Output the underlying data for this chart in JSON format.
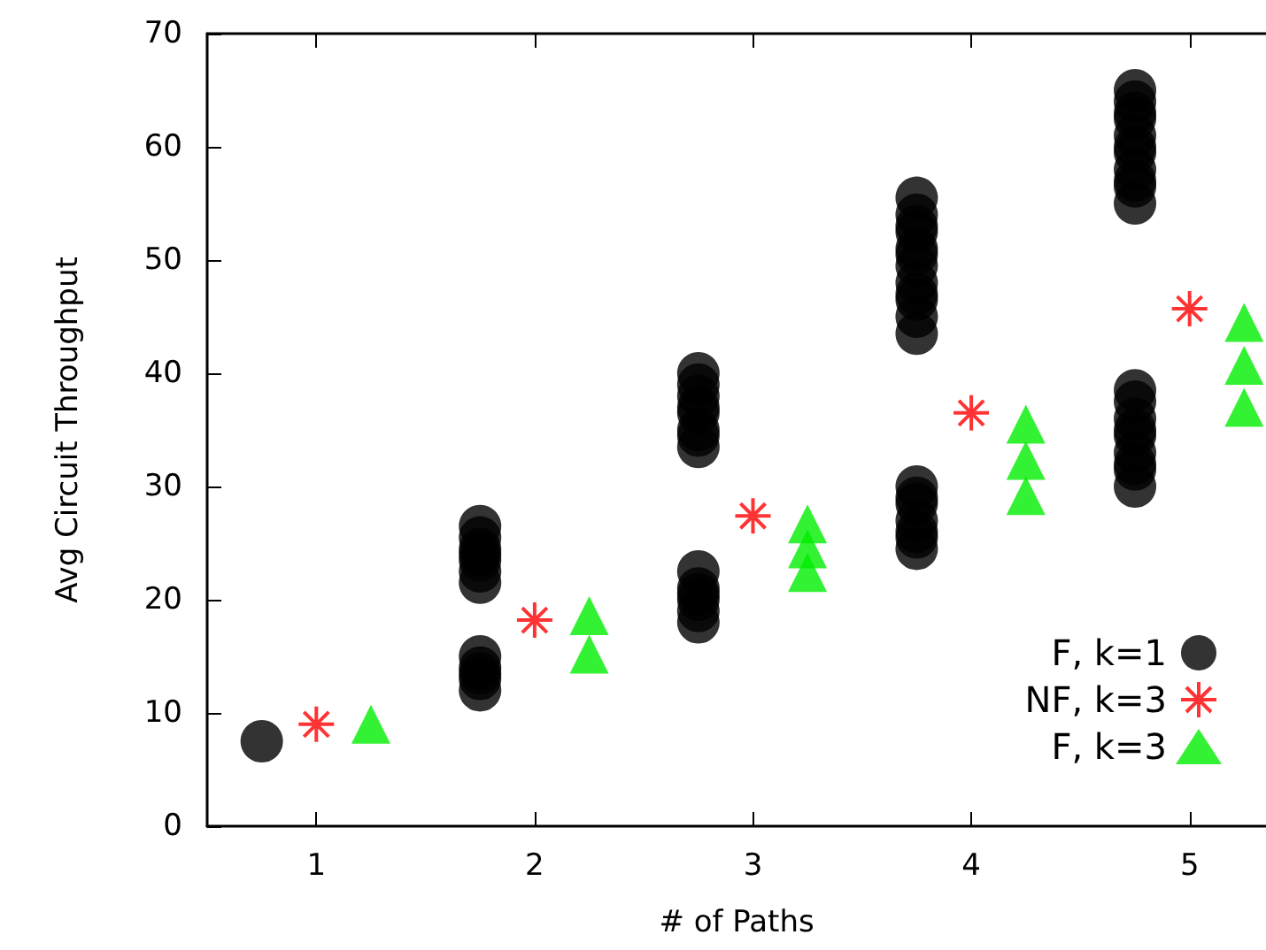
{
  "chart_data": {
    "type": "scatter",
    "xlabel": "# of Paths",
    "ylabel": "Avg Circuit Throughput",
    "xlim": [
      0.5,
      5.35
    ],
    "xticks": [
      1,
      2,
      3,
      4,
      5
    ],
    "ylim": [
      0,
      70
    ],
    "yticks": [
      0,
      10,
      20,
      30,
      40,
      50,
      60,
      70
    ],
    "grid": false,
    "legend": "bottom right",
    "series": [
      {
        "name": "F, k=1",
        "color": "#000000",
        "marker": "circle",
        "x": [
          0.75,
          1.75,
          1.75,
          1.75,
          1.75,
          1.75,
          1.75,
          1.75,
          1.75,
          1.75,
          1.75,
          1.75,
          1.75,
          2.75,
          2.75,
          2.75,
          2.75,
          2.75,
          2.75,
          2.75,
          2.75,
          2.75,
          2.75,
          2.75,
          2.75,
          2.75,
          2.75,
          3.75,
          3.75,
          3.75,
          3.75,
          3.75,
          3.75,
          3.75,
          3.75,
          3.75,
          3.75,
          3.75,
          3.75,
          3.75,
          3.75,
          3.75,
          3.75,
          3.75,
          3.75,
          3.75,
          4.75,
          4.75,
          4.75,
          4.75,
          4.75,
          4.75,
          4.75,
          4.75,
          4.75,
          4.75,
          4.75,
          4.75,
          4.75,
          4.75,
          4.75,
          4.75,
          4.75,
          4.75,
          4.75,
          4.75
        ],
        "values": [
          7.5,
          12,
          13,
          14,
          15,
          21.5,
          22.5,
          23.5,
          24.5,
          25.5,
          26.5,
          24,
          13.5,
          18,
          19,
          20,
          21,
          22.5,
          20.5,
          33.5,
          35,
          36.5,
          38,
          39,
          40,
          37,
          34.5,
          24.5,
          25.5,
          27,
          28.5,
          30,
          43.5,
          45,
          46.5,
          48,
          49.5,
          51,
          52.5,
          54,
          55.5,
          47,
          50.5,
          26,
          29,
          53,
          30,
          31.5,
          33,
          34.5,
          36,
          37.5,
          38.5,
          55,
          56.5,
          58,
          59.5,
          61,
          62.5,
          64,
          65,
          57,
          60,
          63,
          35,
          32
        ]
      },
      {
        "name": "NF, k=3",
        "color": "#ff0000",
        "marker": "cross",
        "x": [
          1,
          2,
          3,
          4,
          5
        ],
        "values": [
          9,
          18.2,
          27.4,
          36.5,
          45.7
        ]
      },
      {
        "name": "F, k=3",
        "color": "#00ee00",
        "marker": "triangle",
        "x": [
          1.25,
          2.25,
          2.25,
          3.25,
          3.25,
          3.25,
          4.25,
          4.25,
          4.25,
          5.25,
          5.25,
          5.25
        ],
        "values": [
          9,
          15.2,
          18.6,
          22.4,
          24.5,
          26.7,
          29.2,
          32.3,
          35.5,
          37,
          40.7,
          44.5
        ]
      }
    ]
  }
}
